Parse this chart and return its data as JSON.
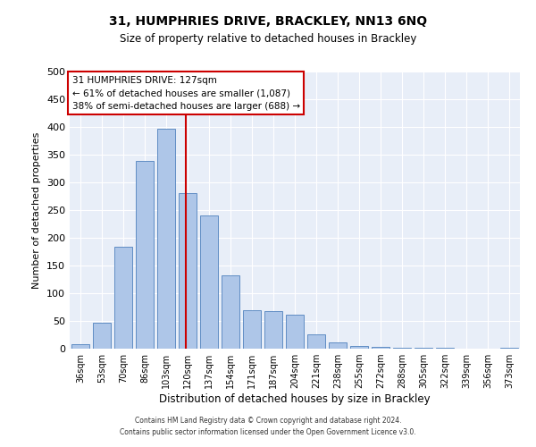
{
  "title1": "31, HUMPHRIES DRIVE, BRACKLEY, NN13 6NQ",
  "title2": "Size of property relative to detached houses in Brackley",
  "xlabel": "Distribution of detached houses by size in Brackley",
  "ylabel": "Number of detached properties",
  "categories": [
    "36sqm",
    "53sqm",
    "70sqm",
    "86sqm",
    "103sqm",
    "120sqm",
    "137sqm",
    "154sqm",
    "171sqm",
    "187sqm",
    "204sqm",
    "221sqm",
    "238sqm",
    "255sqm",
    "272sqm",
    "288sqm",
    "305sqm",
    "322sqm",
    "339sqm",
    "356sqm",
    "373sqm"
  ],
  "values": [
    8,
    46,
    184,
    338,
    397,
    280,
    240,
    133,
    70,
    68,
    62,
    26,
    12,
    5,
    3,
    2,
    1,
    1,
    0,
    0,
    1
  ],
  "bar_color": "#aec6e8",
  "bar_edge_color": "#4f81bd",
  "line_color": "#cc0000",
  "background_color": "#e8eef8",
  "ylim": [
    0,
    500
  ],
  "yticks": [
    0,
    50,
    100,
    150,
    200,
    250,
    300,
    350,
    400,
    450,
    500
  ],
  "annotation_label": "31 HUMPHRIES DRIVE: 127sqm",
  "annotation_line1": "← 61% of detached houses are smaller (1,087)",
  "annotation_line2": "38% of semi-detached houses are larger (688) →",
  "footer1": "Contains HM Land Registry data © Crown copyright and database right 2024.",
  "footer2": "Contains public sector information licensed under the Open Government Licence v3.0.",
  "line_x_index": 4.91
}
